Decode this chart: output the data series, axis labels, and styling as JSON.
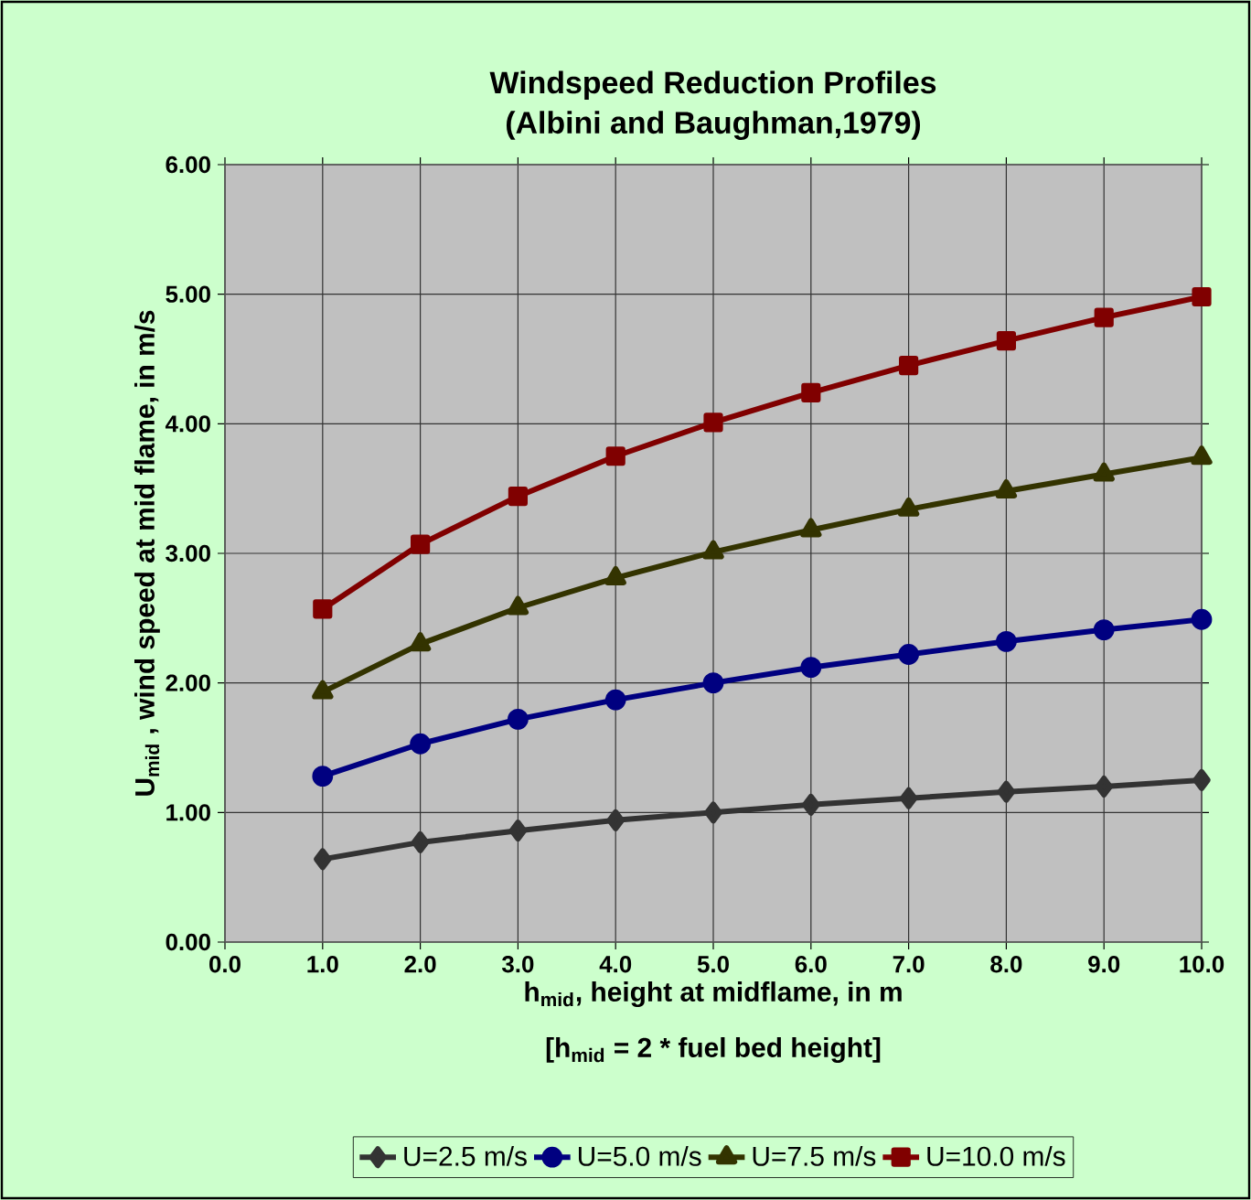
{
  "chart_data": {
    "type": "line",
    "title": "Windspeed Reduction Profiles",
    "subtitle": "(Albini and Baughman,1979)",
    "xlabel": "h$_{mid}$, height at midflame, in m",
    "ylabel": "U$_{mid}$ , wind speed at mid flame, in m/s",
    "annotations": [
      "[h$_{mid}$ = 2 * fuel bed height]"
    ],
    "x": [
      1,
      2,
      3,
      4,
      5,
      6,
      7,
      8,
      9,
      10
    ],
    "xlim": [
      0,
      10
    ],
    "xticks": [
      {
        "value": 0,
        "label": "0.0"
      },
      {
        "value": 1,
        "label": "1.0"
      },
      {
        "value": 2,
        "label": "2.0"
      },
      {
        "value": 3,
        "label": "3.0"
      },
      {
        "value": 4,
        "label": "4.0"
      },
      {
        "value": 5,
        "label": "5.0"
      },
      {
        "value": 6,
        "label": "6.0"
      },
      {
        "value": 7,
        "label": "7.0"
      },
      {
        "value": 8,
        "label": "8.0"
      },
      {
        "value": 9,
        "label": "9.0"
      },
      {
        "value": 10,
        "label": "10.0"
      }
    ],
    "ylim": [
      0,
      6
    ],
    "yticks": [
      {
        "value": 0,
        "label": "0.00"
      },
      {
        "value": 1,
        "label": "1.00"
      },
      {
        "value": 2,
        "label": "2.00"
      },
      {
        "value": 3,
        "label": "3.00"
      },
      {
        "value": 4,
        "label": "4.00"
      },
      {
        "value": 5,
        "label": "5.00"
      },
      {
        "value": 6,
        "label": "6.00"
      }
    ],
    "grid": true,
    "legend": "bottom",
    "line_style": "solid",
    "series": [
      {
        "name": "U=2.5 m/s",
        "color": "#333333",
        "marker": "diamond",
        "values": [
          0.64,
          0.77,
          0.86,
          0.94,
          1.0,
          1.06,
          1.11,
          1.16,
          1.2,
          1.25
        ]
      },
      {
        "name": "U=5.0 m/s",
        "color": "#000080",
        "marker": "circle",
        "values": [
          1.28,
          1.53,
          1.72,
          1.87,
          2.0,
          2.12,
          2.22,
          2.32,
          2.41,
          2.49
        ]
      },
      {
        "name": "U=7.5 m/s",
        "color": "#333300",
        "marker": "triangle",
        "values": [
          1.93,
          2.3,
          2.58,
          2.81,
          3.01,
          3.18,
          3.34,
          3.48,
          3.61,
          3.74
        ]
      },
      {
        "name": "U=10.0 m/s",
        "color": "#800000",
        "marker": "square",
        "values": [
          2.57,
          3.07,
          3.44,
          3.75,
          4.01,
          4.24,
          4.45,
          4.64,
          4.82,
          4.98
        ]
      }
    ]
  }
}
